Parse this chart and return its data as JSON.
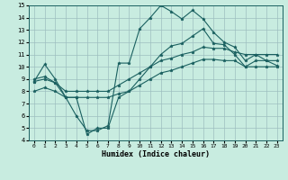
{
  "xlabel": "Humidex (Indice chaleur)",
  "background_color": "#c8ece0",
  "grid_color": "#9dbfbf",
  "line_color": "#1a6060",
  "x_values": [
    0,
    1,
    2,
    3,
    4,
    5,
    6,
    7,
    8,
    9,
    10,
    11,
    12,
    13,
    14,
    15,
    16,
    17,
    18,
    19,
    20,
    21,
    22,
    23
  ],
  "ylim": [
    4,
    15
  ],
  "xlim": [
    -0.5,
    23.5
  ],
  "yticks": [
    4,
    5,
    6,
    7,
    8,
    9,
    10,
    11,
    12,
    13,
    14,
    15
  ],
  "xticks": [
    0,
    1,
    2,
    3,
    4,
    5,
    6,
    7,
    8,
    9,
    10,
    11,
    12,
    13,
    14,
    15,
    16,
    17,
    18,
    19,
    20,
    21,
    22,
    23
  ],
  "series": {
    "line1": [
      8.8,
      10.2,
      9.0,
      7.5,
      6.0,
      4.8,
      4.8,
      5.2,
      10.3,
      10.3,
      13.1,
      14.0,
      15.0,
      14.5,
      13.9,
      14.6,
      13.9,
      12.8,
      12.0,
      11.6,
      10.5,
      11.0,
      10.5,
      10.5
    ],
    "line2": [
      8.8,
      9.0,
      8.7,
      7.5,
      7.5,
      4.5,
      5.0,
      5.0,
      7.5,
      8.0,
      9.0,
      10.0,
      11.0,
      11.7,
      11.9,
      12.5,
      13.1,
      11.9,
      11.8,
      11.0,
      10.0,
      10.5,
      10.5,
      10.1
    ],
    "line3": [
      8.0,
      8.3,
      8.0,
      7.5,
      7.5,
      7.5,
      7.5,
      7.5,
      7.8,
      8.0,
      8.5,
      9.0,
      9.5,
      9.7,
      10.0,
      10.3,
      10.6,
      10.6,
      10.5,
      10.5,
      10.0,
      10.0,
      10.0,
      10.0
    ],
    "line4": [
      9.0,
      9.2,
      8.7,
      8.0,
      8.0,
      8.0,
      8.0,
      8.0,
      8.5,
      9.0,
      9.5,
      10.0,
      10.5,
      10.7,
      11.0,
      11.2,
      11.6,
      11.5,
      11.5,
      11.2,
      11.0,
      11.0,
      11.0,
      11.0
    ]
  },
  "tick_fontsize": 5,
  "xlabel_fontsize": 6,
  "marker_size": 2.5,
  "linewidth": 0.8
}
